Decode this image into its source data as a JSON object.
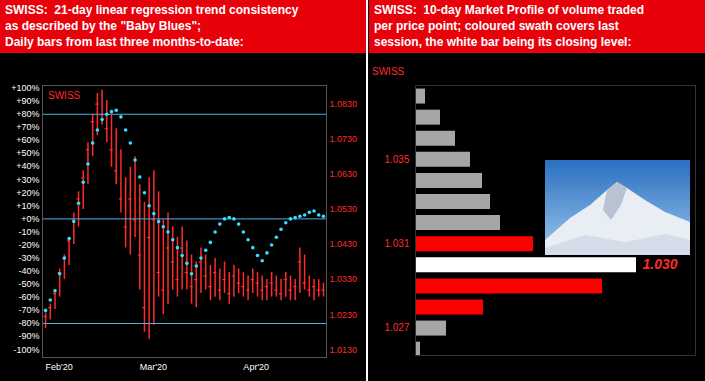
{
  "chart_data": [
    {
      "type": "ohlc",
      "title": "SWISS:  21-day linear regression trend consistency\nas described by the \"Baby Blues\";\nDaily bars from last three months-to-date:",
      "label": "SWISS",
      "categories": [
        "Feb'20",
        null,
        null,
        null,
        null,
        null,
        null,
        null,
        null,
        null,
        null,
        null,
        null,
        null,
        null,
        null,
        null,
        null,
        null,
        null,
        "Mar'20",
        null,
        null,
        null,
        null,
        null,
        null,
        null,
        null,
        null,
        null,
        null,
        null,
        null,
        null,
        null,
        null,
        null,
        null,
        null,
        null,
        null,
        "Apr'20",
        null,
        null,
        null,
        null,
        null,
        null,
        null,
        null,
        null,
        null,
        null,
        null,
        null,
        null,
        null,
        null,
        null
      ],
      "series": [
        {
          "type": "scatter",
          "color": "#33e0ff",
          "marker": "circle",
          "values": [
            -70,
            -62,
            -55,
            -42,
            -30,
            -15,
            -2,
            12,
            28,
            42,
            58,
            68,
            76,
            80,
            82,
            83,
            78,
            68,
            58,
            45,
            32,
            20,
            10,
            4,
            -2,
            -6,
            -10,
            -16,
            -22,
            -28,
            -34,
            -42,
            -36,
            -30,
            -24,
            -18,
            -10,
            -4,
            0,
            1,
            0,
            -4,
            -10,
            -16,
            -22,
            -28,
            -32,
            -26,
            -20,
            -14,
            -8,
            -3,
            0,
            1,
            2,
            3,
            5,
            6,
            3,
            2
          ]
        },
        {
          "type": "ohlc",
          "axis": "y2",
          "color": "#ff2a2a",
          "high": [
            1.0235,
            1.026,
            1.03,
            1.036,
            1.04,
            1.045,
            1.052,
            1.058,
            1.064,
            1.072,
            1.08,
            1.086,
            1.087,
            1.084,
            1.08,
            1.076,
            1.07,
            1.062,
            1.065,
            1.068,
            1.06,
            1.055,
            1.062,
            1.064,
            1.058,
            1.05,
            1.052,
            1.048,
            1.045,
            1.048,
            1.044,
            1.04,
            1.038,
            1.042,
            1.04,
            1.037,
            1.039,
            1.036,
            1.038,
            1.035,
            1.037,
            1.036,
            1.035,
            1.034,
            1.036,
            1.035,
            1.034,
            1.033,
            1.035,
            1.034,
            1.033,
            1.035,
            1.034,
            1.033,
            1.042,
            1.04,
            1.034,
            1.033,
            1.033,
            1.032
          ],
          "low": [
            1.019,
            1.0215,
            1.0245,
            1.028,
            1.033,
            1.037,
            1.043,
            1.048,
            1.053,
            1.06,
            1.068,
            1.074,
            1.077,
            1.072,
            1.065,
            1.06,
            1.052,
            1.042,
            1.04,
            1.045,
            1.03,
            1.018,
            1.016,
            1.02,
            1.028,
            1.023,
            1.026,
            1.03,
            1.028,
            1.03,
            1.03,
            1.026,
            1.025,
            1.029,
            1.03,
            1.027,
            1.028,
            1.027,
            1.029,
            1.026,
            1.028,
            1.029,
            1.028,
            1.027,
            1.029,
            1.028,
            1.027,
            1.027,
            1.028,
            1.028,
            1.027,
            1.028,
            1.027,
            1.027,
            1.029,
            1.03,
            1.028,
            1.027,
            1.028,
            1.028
          ],
          "close": [
            1.0225,
            1.025,
            1.029,
            1.035,
            1.039,
            1.044,
            1.05,
            1.056,
            1.062,
            1.07,
            1.078,
            1.083,
            1.08,
            1.076,
            1.07,
            1.064,
            1.056,
            1.048,
            1.056,
            1.05,
            1.04,
            1.025,
            1.045,
            1.05,
            1.035,
            1.03,
            1.042,
            1.038,
            1.033,
            1.042,
            1.035,
            1.031,
            1.033,
            1.038,
            1.034,
            1.031,
            1.035,
            1.03,
            1.033,
            1.029,
            1.034,
            1.032,
            1.031,
            1.03,
            1.033,
            1.032,
            1.03,
            1.031,
            1.032,
            1.03,
            1.029,
            1.033,
            1.03,
            1.031,
            1.038,
            1.032,
            1.03,
            1.031,
            1.03,
            1.03
          ]
        }
      ],
      "hlines": [
        80,
        0,
        -80
      ],
      "ylim": [
        -106,
        102
      ],
      "yticks": [
        {
          "value": 100,
          "label": "+100%"
        },
        {
          "value": 90,
          "label": "+90%"
        },
        {
          "value": 80,
          "label": "+80%"
        },
        {
          "value": 70,
          "label": "+70%"
        },
        {
          "value": 60,
          "label": "+60%"
        },
        {
          "value": 50,
          "label": "+50%"
        },
        {
          "value": 40,
          "label": "+40%"
        },
        {
          "value": 30,
          "label": "+30%"
        },
        {
          "value": 20,
          "label": "+20%"
        },
        {
          "value": 10,
          "label": "+10%"
        },
        {
          "value": 0,
          "label": "+0%"
        },
        {
          "value": -10,
          "label": "-10%"
        },
        {
          "value": -20,
          "label": "-20%"
        },
        {
          "value": -30,
          "label": "-30%"
        },
        {
          "value": -40,
          "label": "-40%"
        },
        {
          "value": -50,
          "label": "-50%"
        },
        {
          "value": -60,
          "label": "-60%"
        },
        {
          "value": -70,
          "label": "-70%"
        },
        {
          "value": -80,
          "label": "-80%"
        },
        {
          "value": -90,
          "label": "-90%"
        },
        {
          "value": -100,
          "label": "-100%"
        }
      ],
      "y2lim": [
        1.0108,
        1.0883
      ],
      "y2ticks": [
        {
          "value": 1.083,
          "label": "1.0830"
        },
        {
          "value": 1.073,
          "label": "1.0730"
        },
        {
          "value": 1.063,
          "label": "1.0630"
        },
        {
          "value": 1.053,
          "label": "1.0530"
        },
        {
          "value": 1.043,
          "label": "1.0430"
        },
        {
          "value": 1.033,
          "label": "1.0330"
        },
        {
          "value": 1.023,
          "label": "1.0230"
        },
        {
          "value": 1.013,
          "label": "1.0130"
        }
      ]
    },
    {
      "type": "bar",
      "orientation": "horizontal",
      "title": "SWISS:  10-day Market Profile of volume traded\nper price point; coloured swath covers last\nsession, the white bar being its closing level:",
      "label": "SWISS",
      "y": [
        1.038,
        1.037,
        1.036,
        1.035,
        1.034,
        1.033,
        1.032,
        1.031,
        1.03,
        1.029,
        1.028,
        1.027,
        1.026
      ],
      "values": [
        10,
        25,
        40,
        55,
        67,
        75,
        85,
        118,
        221,
        187,
        68,
        31,
        5
      ],
      "colors": [
        "#a6a6a6",
        "#a6a6a6",
        "#a6a6a6",
        "#a6a6a6",
        "#a6a6a6",
        "#a6a6a6",
        "#a6a6a6",
        "#ff0000",
        "#ffffff",
        "#ff0000",
        "#ff0000",
        "#a6a6a6",
        "#a6a6a6"
      ],
      "xlim": [
        0,
        280
      ],
      "ylim": [
        1.0257,
        1.0385
      ],
      "yticks": [
        1.035,
        1.031,
        1.027
      ],
      "tick_labels": "y",
      "annotations": [
        {
          "text": "1.030",
          "y": 1.03
        }
      ]
    }
  ]
}
